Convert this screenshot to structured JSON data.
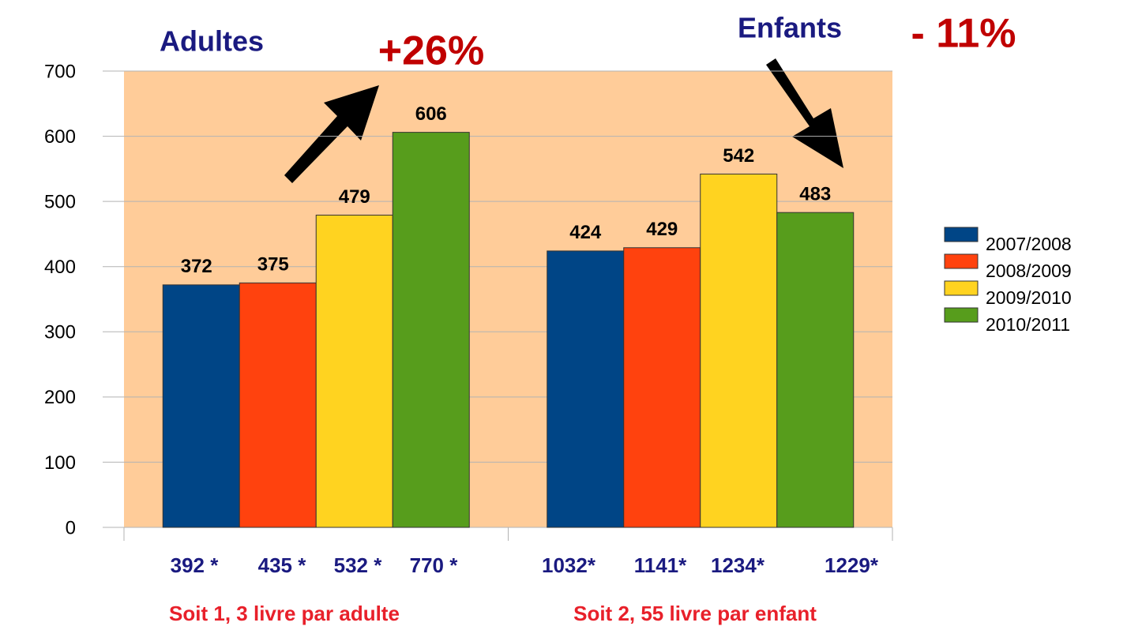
{
  "chart_data": {
    "type": "bar",
    "categories": [
      null,
      null
    ],
    "series": [
      {
        "name": "2007/2008",
        "color": "#004586",
        "values": [
          372,
          424
        ],
        "notes": [
          "392 *",
          "1032*"
        ]
      },
      {
        "name": "2008/2009",
        "color": "#ff420e",
        "values": [
          375,
          429
        ],
        "notes": [
          "435 *",
          "1141*"
        ]
      },
      {
        "name": "2009/2010",
        "color": "#ffd320",
        "values": [
          479,
          542
        ],
        "notes": [
          "532 *",
          "1234*"
        ]
      },
      {
        "name": "2010/2011",
        "color": "#579d1c",
        "values": [
          606,
          483
        ],
        "notes": [
          "770 *",
          "1229*"
        ]
      }
    ],
    "ylim": [
      0,
      700
    ],
    "yticks": [
      0,
      100,
      200,
      300,
      400,
      500,
      600,
      700
    ],
    "grid": true,
    "legend": "right",
    "plot_background": "#ffcc99",
    "annotations": [
      {
        "text": "Adultes",
        "color": "#1a1a80"
      },
      {
        "text": "+26%",
        "color": "#c00000"
      },
      {
        "text": "Enfants",
        "color": "#1a1a80"
      },
      {
        "text": "- 11%",
        "color": "#c00000"
      }
    ],
    "footnotes": [
      "Soit 1, 3 livre par adulte",
      "Soit 2, 55 livre par enfant"
    ],
    "footnote_color": "#e8202a"
  }
}
